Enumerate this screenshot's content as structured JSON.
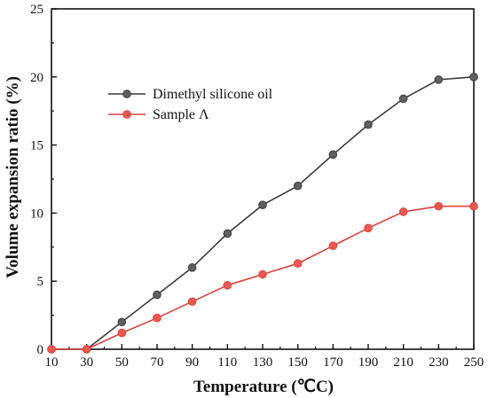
{
  "chart_data": {
    "type": "line",
    "title": "",
    "xlabel": "Temperature (℃C)",
    "ylabel": "Volume expansion ratio (%)",
    "x": [
      10,
      30,
      50,
      70,
      90,
      110,
      130,
      150,
      170,
      190,
      210,
      230,
      250
    ],
    "xlim": [
      10,
      250
    ],
    "ylim": [
      0,
      25
    ],
    "x_ticks": [
      "10",
      "30",
      "50",
      "70",
      "90",
      "110",
      "130",
      "150",
      "170",
      "190",
      "210",
      "230",
      "250"
    ],
    "y_ticks": [
      "0",
      "5",
      "10",
      "15",
      "20",
      "25"
    ],
    "grid": false,
    "legend_position": "top-left",
    "series": [
      {
        "name": "Dimethyl silicone oil",
        "color": "#3c3c3c",
        "marker_color": "#606060",
        "values": [
          0,
          0,
          2.0,
          4.0,
          6.0,
          8.5,
          10.6,
          12.0,
          14.3,
          16.5,
          18.4,
          19.8,
          20.0
        ]
      },
      {
        "name": "Sample Λ",
        "color": "#e0413c",
        "marker_color": "#e85a52",
        "values": [
          0,
          0,
          1.2,
          2.3,
          3.5,
          4.7,
          5.5,
          6.3,
          7.6,
          8.9,
          10.1,
          10.5,
          10.5
        ]
      }
    ]
  }
}
